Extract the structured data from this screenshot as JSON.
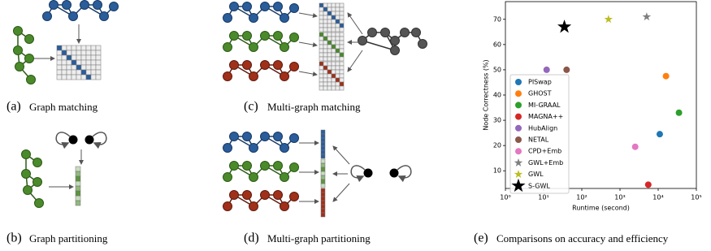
{
  "panels": [
    {
      "label": "(a)",
      "caption": "Graph matching"
    },
    {
      "label": "(b)",
      "caption": "Graph partitioning"
    },
    {
      "label": "(c)",
      "caption": "Multi-graph matching"
    },
    {
      "label": "(d)",
      "caption": "Multi-graph partitioning"
    },
    {
      "label": "(e)",
      "caption": "Comparisons on accuracy and efficiency"
    }
  ],
  "chart_data": {
    "type": "scatter",
    "xlabel": "Runtime (second)",
    "ylabel": "Node Correctness (%)",
    "xscale": "log",
    "xlim": [
      1,
      100000
    ],
    "xticks": [
      {
        "value": 1,
        "label": "10⁰"
      },
      {
        "value": 10,
        "label": "10¹"
      },
      {
        "value": 100,
        "label": "10²"
      },
      {
        "value": 1000,
        "label": "10³"
      },
      {
        "value": 10000,
        "label": "10⁴"
      },
      {
        "value": 100000,
        "label": "10⁵"
      }
    ],
    "ylim": [
      3,
      77
    ],
    "yticks": [
      10,
      20,
      30,
      40,
      50,
      60,
      70
    ],
    "legend": "center left",
    "series": [
      {
        "name": "PISwap",
        "color": "#1f77b4",
        "marker": "circle",
        "x": [
          11000
        ],
        "values": [
          24.5
        ]
      },
      {
        "name": "GHOST",
        "color": "#ff7f0e",
        "marker": "circle",
        "x": [
          16000
        ],
        "values": [
          47.5
        ]
      },
      {
        "name": "MI-GRAAL",
        "color": "#2ca02c",
        "marker": "circle",
        "x": [
          35000
        ],
        "values": [
          33
        ]
      },
      {
        "name": "MAGNA++",
        "color": "#d62728",
        "marker": "circle",
        "x": [
          5500
        ],
        "values": [
          4.5
        ]
      },
      {
        "name": "HubAlign",
        "color": "#9467bd",
        "marker": "circle",
        "x": [
          12
        ],
        "values": [
          50
        ]
      },
      {
        "name": "NETAL",
        "color": "#8c564b",
        "marker": "circle",
        "x": [
          40
        ],
        "values": [
          50
        ]
      },
      {
        "name": "CPD+Emb",
        "color": "#e377c2",
        "marker": "circle",
        "x": [
          2500
        ],
        "values": [
          19.5
        ]
      },
      {
        "name": "GWL+Emb",
        "color": "#7f7f7f",
        "marker": "star",
        "x": [
          5000
        ],
        "values": [
          71
        ]
      },
      {
        "name": "GWL",
        "color": "#bcbd22",
        "marker": "star",
        "x": [
          500
        ],
        "values": [
          70
        ]
      },
      {
        "name": "S-GWL",
        "color": "#000000",
        "marker": "bigstar",
        "x": [
          35
        ],
        "values": [
          67
        ]
      }
    ]
  }
}
